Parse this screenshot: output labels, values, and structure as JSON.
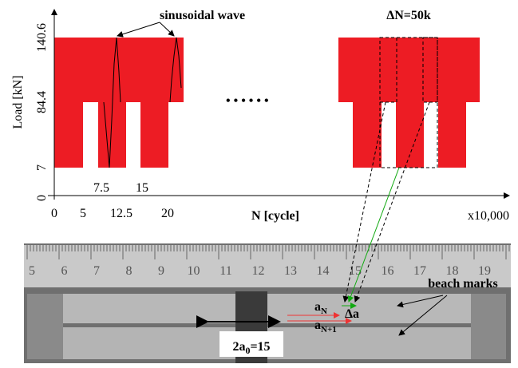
{
  "chart": {
    "y_label": "Load [kN]",
    "y_ticks": [
      "140.6",
      "84.4",
      "7",
      "0"
    ],
    "x_ticks": [
      "0",
      "5",
      "7.5",
      "12.5",
      "15",
      "20"
    ],
    "x_label": "N [cycle]",
    "x_scale": "x10,000",
    "wave_label": "sinusoidal wave",
    "block_label": "ΔN=50k"
  },
  "photo": {
    "ruler": [
      "5",
      "6",
      "7",
      "8",
      "9",
      "10",
      "11",
      "12",
      "13",
      "14",
      "15",
      "16",
      "17",
      "18",
      "19"
    ],
    "beach_marks": "beach marks",
    "a_n": {
      "base": "a",
      "sub": "N"
    },
    "delta_a": "Δa",
    "a_n1": {
      "base": "a",
      "sub": "N+1"
    },
    "initial": {
      "pre": "2a",
      "sub": "0",
      "post": "=15"
    }
  }
}
